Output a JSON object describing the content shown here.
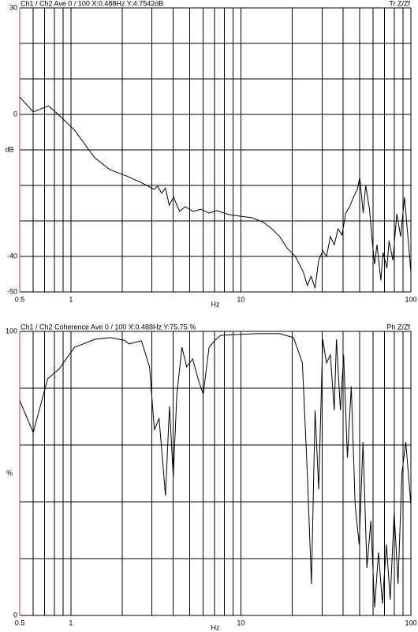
{
  "chart_data": [
    {
      "type": "line",
      "title": "Ch1 / Ch2  Ave 0 / 100  X:0.488Hz  Y:4.7542dB",
      "mode_label": "Tr Z/Zf",
      "xlabel": "Hz",
      "ylabel": "dB",
      "log_x": true,
      "color": "#000000",
      "axis_color": "#e03030",
      "xlim": [
        0.5,
        100
      ],
      "ylim": [
        -50,
        30
      ],
      "xticks": [
        0.5,
        1,
        10,
        100
      ],
      "yticks": [
        30,
        0,
        -40,
        -50
      ],
      "xgrid": [
        0.5,
        0.6,
        0.7,
        0.8,
        0.9,
        1,
        2,
        3,
        4,
        5,
        6,
        7,
        8,
        9,
        10,
        20,
        30,
        40,
        50,
        60,
        70,
        80,
        90,
        100
      ],
      "ygrid": [
        30,
        20,
        10,
        0,
        -10,
        -20,
        -30,
        -40,
        -50
      ],
      "x": [
        0.5,
        0.6,
        0.74,
        0.85,
        1.05,
        1.38,
        1.7,
        2.11,
        2.62,
        3.08,
        3.24,
        3.42,
        3.6,
        3.79,
        4.02,
        4.36,
        4.7,
        5.23,
        5.82,
        6.5,
        7.2,
        8.5,
        9.95,
        11.6,
        13.6,
        15.2,
        16.9,
        18.8,
        20.9,
        23.3,
        24.6,
        25.9,
        27.3,
        28.7,
        30.3,
        31.9,
        33.6,
        35.4,
        37.3,
        39.3,
        41.4,
        43.6,
        45.9,
        48.4,
        50,
        52.4,
        54.2,
        57.1,
        58.9,
        61.2,
        63.2,
        66.6,
        68.6,
        72.3,
        74.4,
        78.4,
        82.6,
        87,
        91.7,
        100
      ],
      "values": [
        4.9,
        0.7,
        2.4,
        -0.2,
        -4.4,
        -12.2,
        -15.6,
        -17.3,
        -19.3,
        -21.1,
        -20.2,
        -22.2,
        -20.7,
        -25.6,
        -23.3,
        -27.3,
        -26,
        -27.3,
        -26.7,
        -27.8,
        -27.1,
        -28.2,
        -28.7,
        -29.1,
        -30.4,
        -32.2,
        -34.4,
        -37.8,
        -40,
        -44.4,
        -48.2,
        -45.6,
        -48.9,
        -41.1,
        -38.4,
        -40,
        -34.4,
        -36.7,
        -32.2,
        -34,
        -27.8,
        -26,
        -23.3,
        -21.1,
        -17.8,
        -27.8,
        -20,
        -26.7,
        -34.4,
        -42.2,
        -36.7,
        -46.7,
        -38.9,
        -43.3,
        -35.6,
        -41.1,
        -28,
        -34.4,
        -23.3,
        -44.4
      ]
    },
    {
      "type": "line",
      "title": "Ch1 / Ch2  Coherence Ave 0 / 100  X:0.488Hz  Y:75.75 %",
      "mode_label": "Ph Z/Zf",
      "xlabel": "Hz",
      "ylabel": "%",
      "log_x": true,
      "color": "#000000",
      "axis_color": "#e03030",
      "xlim": [
        0.5,
        100
      ],
      "ylim": [
        0,
        100
      ],
      "xticks": [
        0.5,
        1,
        10,
        100
      ],
      "yticks": [
        100,
        0
      ],
      "xgrid": [
        0.5,
        0.6,
        0.7,
        0.8,
        0.9,
        1,
        2,
        3,
        4,
        5,
        6,
        7,
        8,
        9,
        10,
        20,
        30,
        40,
        50,
        60,
        70,
        80,
        90,
        100
      ],
      "ygrid": [
        100,
        80,
        60,
        40,
        20,
        0
      ],
      "x": [
        0.5,
        0.6,
        0.73,
        0.85,
        1.05,
        1.38,
        1.7,
        2.06,
        2.2,
        2.6,
        2.9,
        3.1,
        3.3,
        3.6,
        3.8,
        4.0,
        4.2,
        4.5,
        4.8,
        5.2,
        5.6,
        6.0,
        6.5,
        7.0,
        7.6,
        9.3,
        12.5,
        17,
        20.4,
        23,
        24.6,
        26,
        27.3,
        28.7,
        30.3,
        31.9,
        33.6,
        35.4,
        36.5,
        38.5,
        40.2,
        42.3,
        44.6,
        47,
        49.6,
        52.3,
        55.1,
        58.1,
        61.2,
        64.5,
        68,
        71.7,
        75.6,
        79.7,
        84,
        88.5,
        93.3,
        100
      ],
      "values": [
        75.6,
        64.4,
        83.3,
        86.7,
        94.4,
        97.2,
        97.8,
        96.9,
        95.6,
        96.7,
        87.5,
        65.3,
        69.4,
        42.2,
        73.6,
        48.6,
        77.8,
        94.4,
        87.5,
        90.3,
        83.3,
        77.8,
        94.4,
        96.7,
        98.6,
        98.9,
        99.2,
        99.2,
        97.8,
        88.9,
        50,
        11.1,
        72.2,
        44.4,
        97.2,
        88.9,
        91.7,
        72.2,
        97.2,
        72.2,
        91.7,
        55.6,
        80.6,
        38.9,
        25,
        61.1,
        16.7,
        33.3,
        2.8,
        22.2,
        4.2,
        25,
        5.6,
        36.1,
        11.1,
        50,
        61.1,
        38.9
      ]
    }
  ]
}
